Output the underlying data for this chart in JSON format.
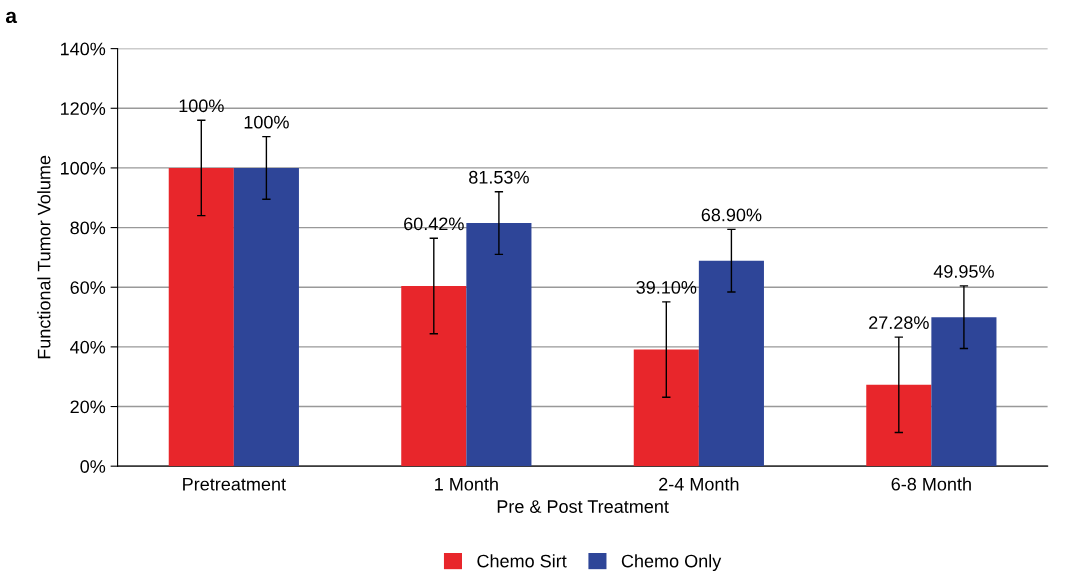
{
  "chart_data": {
    "type": "bar",
    "title": "a",
    "xlabel": "Pre & Post Treatment",
    "ylabel": "Functional Tumor Volume",
    "categories": [
      "Pretreatment",
      "1 Month",
      "2-4 Month",
      "6-8 Month"
    ],
    "series": [
      {
        "name": "Chemo Sirt",
        "color": "#e8262b",
        "values": [
          100,
          60.42,
          39.1,
          27.28
        ],
        "errors": [
          16,
          16,
          16,
          16
        ],
        "value_labels": [
          "100%",
          "60.42%",
          "39.10%",
          "27.28%"
        ]
      },
      {
        "name": "Chemo Only",
        "color": "#2e4598",
        "values": [
          100,
          81.53,
          68.9,
          49.95
        ],
        "errors": [
          10.5,
          10.5,
          10.5,
          10.5
        ],
        "value_labels": [
          "100%",
          "81.53%",
          "68.90%",
          "49.95%"
        ]
      }
    ],
    "ylim": [
      0,
      140
    ],
    "yticks": [
      {
        "value": 0,
        "label": "0%"
      },
      {
        "value": 20,
        "label": "20%"
      },
      {
        "value": 40,
        "label": "40%"
      },
      {
        "value": 60,
        "label": "60%"
      },
      {
        "value": 80,
        "label": "80%"
      },
      {
        "value": 100,
        "label": "100%"
      },
      {
        "value": 120,
        "label": "120%"
      },
      {
        "value": 140,
        "label": "140%"
      }
    ],
    "grid": "y",
    "legend": "bottom"
  }
}
